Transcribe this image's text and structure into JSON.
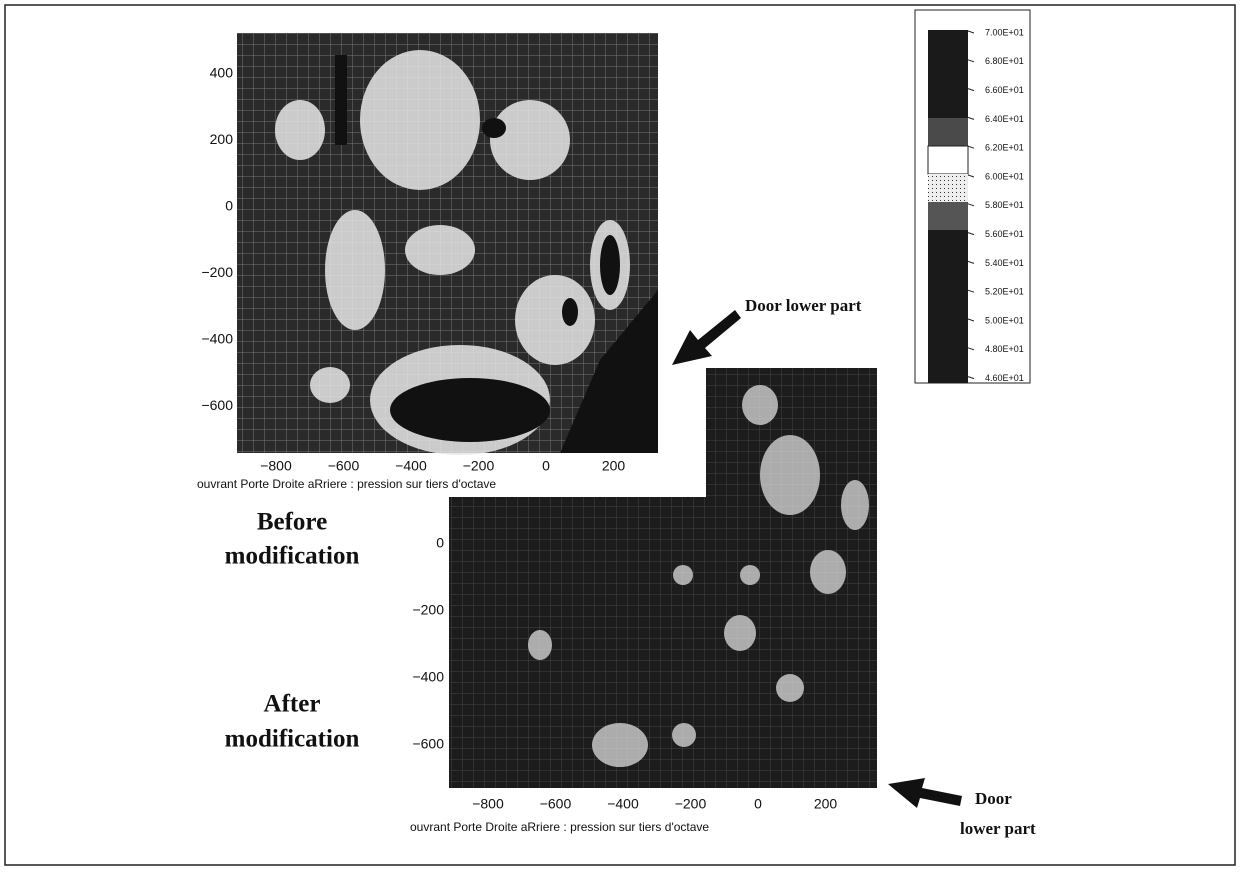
{
  "before_plot": {
    "y_ticks": [
      "400",
      "200",
      "0",
      "−200",
      "−400",
      "−600"
    ],
    "x_ticks": [
      "−800",
      "−600",
      "−400",
      "−200",
      "0",
      "200"
    ],
    "caption": "ouvrant  Porte Droite aRriere : pression sur tiers d'octave"
  },
  "after_plot": {
    "y_ticks": [
      "0",
      "−200",
      "−400",
      "−600"
    ],
    "x_ticks": [
      "−800",
      "−600",
      "−400",
      "−200",
      "0",
      "200"
    ],
    "caption": "ouvrant  Porte Droite aRriere : pression sur tiers d'octave"
  },
  "legend": {
    "labels": [
      "7.00E+01",
      "6.80E+01",
      "6.60E+01",
      "6.40E+01",
      "6.20E+01",
      "6.00E+01",
      "5.80E+01",
      "5.60E+01",
      "5.40E+01",
      "5.20E+01",
      "5.00E+01",
      "4.80E+01",
      "4.60E+01"
    ]
  },
  "labels": {
    "before": [
      "Before",
      "modification"
    ],
    "after": [
      "After",
      "modification"
    ],
    "door_upper": "Door lower part",
    "door_lower": [
      "Door",
      "lower part"
    ]
  }
}
